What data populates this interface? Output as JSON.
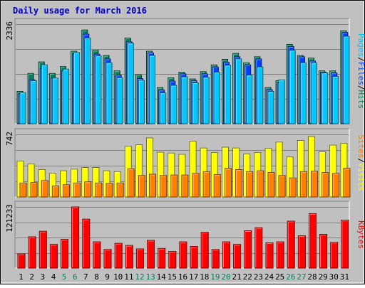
{
  "chart_data": {
    "type": "bar",
    "title": "Daily usage for March 2016",
    "colors": {
      "title": "#0000C0",
      "background": "#C0C0C0",
      "grid": "#808080",
      "hits": "#00805C",
      "files": "#0040FF",
      "pages": "#00C8FF",
      "visits": "#FFFF00",
      "sites": "#FF8000",
      "kbytes": "#FF0000",
      "weekend_day": "#008060",
      "weekday": "#000000"
    },
    "categories": [
      "1",
      "2",
      "3",
      "4",
      "5",
      "6",
      "7",
      "8",
      "9",
      "10",
      "11",
      "12",
      "13",
      "14",
      "15",
      "16",
      "17",
      "18",
      "19",
      "20",
      "21",
      "22",
      "23",
      "24",
      "25",
      "26",
      "27",
      "28",
      "29",
      "30",
      "31"
    ],
    "weekend_days": [
      "5",
      "6",
      "12",
      "13",
      "19",
      "20",
      "26",
      "27"
    ],
    "panels": [
      {
        "id": "requests",
        "max_label": "2336",
        "ymax": 2336,
        "legend": [
          {
            "text": "Pages",
            "color": "#00C8FF"
          },
          {
            "text": "/",
            "color": "#000000"
          },
          {
            "text": "Files",
            "color": "#0040FF"
          },
          {
            "text": "/",
            "color": "#000000"
          },
          {
            "text": "Hits",
            "color": "#00805C"
          }
        ],
        "series": [
          {
            "name": "Hits",
            "color": "#00805C",
            "values": [
              760,
              1180,
              1450,
              1180,
              1340,
              1700,
              2200,
              1720,
              1600,
              1240,
              2010,
              1150,
              1700,
              850,
              1080,
              1210,
              1050,
              1220,
              1380,
              1510,
              1650,
              1430,
              1570,
              850,
              1010,
              1860,
              1600,
              1540,
              1240,
              1240,
              2180
            ]
          },
          {
            "name": "Files",
            "color": "#0040FF",
            "values": [
              700,
              1030,
              1300,
              1070,
              1240,
              1640,
              2100,
              1630,
              1520,
              1140,
              1920,
              1060,
              1660,
              790,
              1000,
              1170,
              1010,
              1170,
              1330,
              1440,
              1570,
              1380,
              1520,
              800,
              960,
              1810,
              1570,
              1470,
              1210,
              1190,
              2140
            ]
          },
          {
            "name": "Pages",
            "color": "#00C8FF",
            "values": [
              730,
              1010,
              1380,
              1070,
              1280,
              1670,
              2010,
              1590,
              1430,
              1080,
              1890,
              1020,
              1600,
              720,
              900,
              1100,
              960,
              1090,
              1210,
              1370,
              1520,
              1140,
              1330,
              760,
              1030,
              1720,
              1430,
              1430,
              1190,
              1110,
              2050
            ]
          }
        ]
      },
      {
        "id": "visits",
        "max_label": "742",
        "ymax": 742,
        "legend": [
          {
            "text": "Sites",
            "color": "#FF8000"
          },
          {
            "text": "/",
            "color": "#000000"
          },
          {
            "text": "Visits",
            "color": "#FFFF00"
          }
        ],
        "series": [
          {
            "name": "Visits",
            "color": "#FFFF00",
            "values": [
              425,
              390,
              325,
              280,
              310,
              330,
              350,
              350,
              310,
              300,
              600,
              620,
              700,
              530,
              520,
              505,
              660,
              580,
              525,
              590,
              580,
              510,
              525,
              575,
              650,
              475,
              670,
              715,
              535,
              615,
              635
            ]
          },
          {
            "name": "Sites",
            "color": "#FF8000",
            "values": [
              165,
              170,
              195,
              130,
              145,
              165,
              180,
              165,
              160,
              165,
              335,
              255,
              270,
              255,
              260,
              260,
              280,
              300,
              265,
              340,
              325,
              300,
              310,
              290,
              255,
              225,
              300,
              305,
              290,
              280,
              340
            ]
          }
        ]
      },
      {
        "id": "kbytes",
        "max_label": "121233",
        "ymax": 121233,
        "legend": [
          {
            "text": "KBytes",
            "color": "#FF0000"
          }
        ],
        "series": [
          {
            "name": "KBytes",
            "color": "#FF0000",
            "values": [
              28000,
              62000,
              73000,
              47000,
              57000,
              121233,
              97000,
              52000,
              37000,
              49000,
              45000,
              38000,
              55000,
              39000,
              33000,
              52000,
              43000,
              71000,
              37000,
              52000,
              47000,
              74000,
              80000,
              50000,
              52000,
              93000,
              64000,
              108000,
              67000,
              51000,
              95000
            ]
          }
        ]
      }
    ]
  }
}
